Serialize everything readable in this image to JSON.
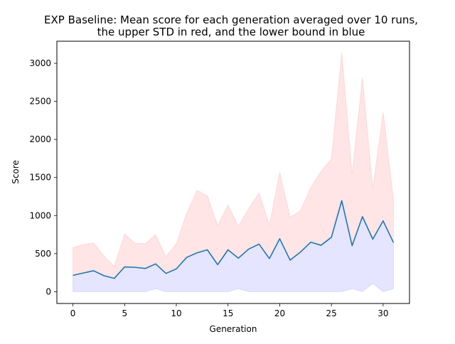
{
  "chart_data": {
    "type": "area",
    "title_lines": [
      "EXP Baseline: Mean score for each generation averaged over 10 runs,",
      "the upper STD in red, and the lower bound in blue"
    ],
    "xlabel": "Generation",
    "ylabel": "Score",
    "xlim": [
      -1.55,
      32.55
    ],
    "ylim": [
      -155,
      3290
    ],
    "x_ticks": [
      0,
      5,
      10,
      15,
      20,
      25,
      30
    ],
    "y_ticks": [
      0,
      500,
      1000,
      1500,
      2000,
      2500,
      3000
    ],
    "x": [
      0,
      1,
      2,
      3,
      4,
      5,
      6,
      7,
      8,
      9,
      10,
      11,
      12,
      13,
      14,
      15,
      16,
      17,
      18,
      19,
      20,
      21,
      22,
      23,
      24,
      25,
      26,
      27,
      28,
      29,
      30,
      31
    ],
    "series": [
      {
        "role": "mean",
        "color": "#1f77b4",
        "values": [
          215,
          245,
          275,
          210,
          175,
          325,
          320,
          305,
          365,
          240,
          300,
          450,
          510,
          550,
          355,
          550,
          440,
          560,
          625,
          435,
          695,
          415,
          520,
          650,
          610,
          715,
          1195,
          605,
          985,
          690,
          930,
          645
        ]
      },
      {
        "role": "upper",
        "color": "#ff0000",
        "values": [
          580,
          620,
          640,
          470,
          330,
          760,
          635,
          630,
          750,
          460,
          630,
          1030,
          1330,
          1260,
          870,
          1140,
          860,
          1090,
          1300,
          870,
          1570,
          980,
          1060,
          1370,
          1580,
          1750,
          3140,
          1545,
          2810,
          1350,
          2360,
          1210
        ]
      },
      {
        "role": "lower",
        "color": "#0000ff",
        "values": [
          0,
          0,
          0,
          0,
          0,
          0,
          0,
          0,
          40,
          0,
          0,
          0,
          0,
          0,
          0,
          0,
          40,
          0,
          0,
          0,
          0,
          0,
          0,
          0,
          0,
          0,
          0,
          40,
          0,
          110,
          0,
          40
        ]
      }
    ],
    "grid": false,
    "legend": "none"
  }
}
